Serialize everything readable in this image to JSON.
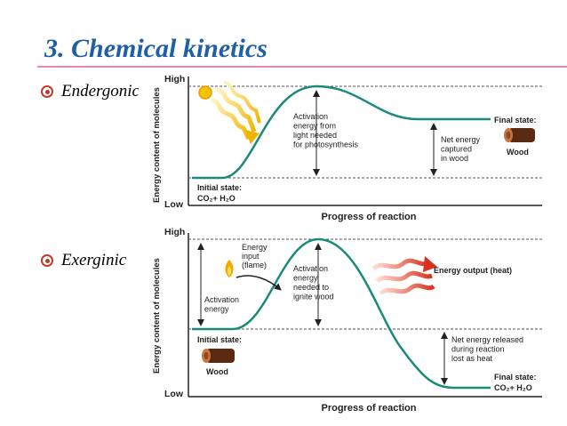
{
  "slide": {
    "title": "3. Chemical kinetics",
    "bullets": [
      "Endergonic",
      "Exerginic"
    ]
  },
  "endergonic": {
    "ylabel": "Energy content of molecules",
    "xlabel": "Progress of reaction",
    "high": "High",
    "low": "Low",
    "activation": [
      "Activation",
      "energy from",
      "light needed",
      "for photosynthesis"
    ],
    "final": "Final state:",
    "final_item": "Wood",
    "net": [
      "Net energy",
      "captured",
      "in wood"
    ],
    "initial": "Initial state:",
    "initial_formula": "CO₂+ H₂O"
  },
  "exergonic": {
    "ylabel": "Energy content of molecules",
    "xlabel": "Progress of reaction",
    "high": "High",
    "low": "Low",
    "input": [
      "Energy",
      "input",
      "(flame)"
    ],
    "activation_left": [
      "Activation",
      "energy"
    ],
    "activation_center": [
      "Activation",
      "energy",
      "needed to",
      "ignite wood"
    ],
    "output": "Energy output (heat)",
    "initial": "Initial state:",
    "initial_item": "Wood",
    "net": [
      "Net energy released",
      "during reaction",
      "lost as heat"
    ],
    "final": "Final state:",
    "final_formula": "CO₂+ H₂O"
  },
  "colors": {
    "title": "#1f5fa8",
    "curve": "#1b8a7a",
    "rule": "#e58ab8",
    "bullet": "#c0392b"
  }
}
